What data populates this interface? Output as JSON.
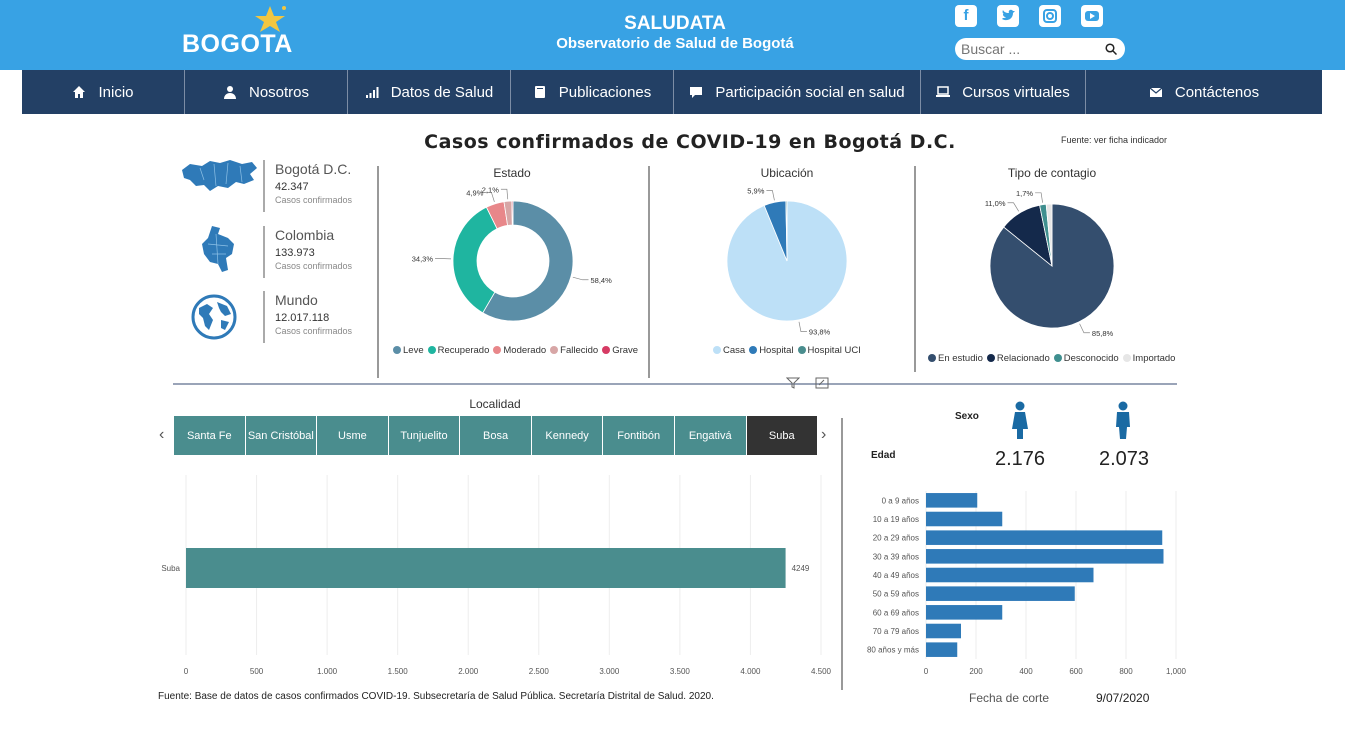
{
  "header": {
    "logo_text": "BOGOTA",
    "app_title": "SALUDATA",
    "app_subtitle": "Observatorio de Salud de Bogotá",
    "search_placeholder": "Buscar ...",
    "social": [
      "facebook-icon",
      "twitter-icon",
      "instagram-icon",
      "youtube-icon"
    ],
    "colors": {
      "topbar": "#38a2e4",
      "nav": "#234065"
    }
  },
  "nav": [
    {
      "label": "Inicio",
      "icon": "home-icon"
    },
    {
      "label": "Nosotros",
      "icon": "user-icon"
    },
    {
      "label": "Datos de Salud",
      "icon": "signal-icon"
    },
    {
      "label": "Publicaciones",
      "icon": "book-icon"
    },
    {
      "label": "Participación social en salud",
      "icon": "comment-icon"
    },
    {
      "label": "Cursos virtuales",
      "icon": "laptop-icon"
    },
    {
      "label": "Contáctenos",
      "icon": "envelope-icon"
    }
  ],
  "report": {
    "title": "Casos confirmados de COVID-19 en Bogotá D.C.",
    "source_link": "Fuente: ver ficha indicador",
    "stats": [
      {
        "name": "Bogotá D.C.",
        "value": "42.347",
        "sub": "Casos confirmados",
        "icon": "bogota-map-icon"
      },
      {
        "name": "Colombia",
        "value": "133.973",
        "sub": "Casos confirmados",
        "icon": "colombia-map-icon"
      },
      {
        "name": "Mundo",
        "value": "12.017.118",
        "sub": "Casos confirmados",
        "icon": "globe-icon"
      }
    ],
    "locality_title": "Localidad",
    "tabs": [
      "Santa Fe",
      "San Cristóbal",
      "Usme",
      "Tunjuelito",
      "Bosa",
      "Kennedy",
      "Fontibón",
      "Engativá",
      "Suba"
    ],
    "active_tab": "Suba",
    "footnote": "Fuente: Base de datos de casos confirmados COVID-19. Subsecretaría de Salud Pública. Secretaría Distrital de Salud. 2020.",
    "sexo_label": "Sexo",
    "edad_label": "Edad",
    "female_count": "2.176",
    "male_count": "2.073",
    "fecha_label": "Fecha de corte",
    "fecha_value": "9/07/2020"
  },
  "chart_data": [
    {
      "type": "pie",
      "title": "Estado",
      "donut": true,
      "slices": [
        {
          "label": "Leve",
          "value": 58.4,
          "text": "58,4%",
          "color": "#5b8ea7"
        },
        {
          "label": "Recuperado",
          "value": 34.3,
          "text": "34,3%",
          "color": "#1fb5a0"
        },
        {
          "label": "Moderado",
          "value": 4.9,
          "text": "4,9%",
          "color": "#e8878a"
        },
        {
          "label": "Fallecido",
          "value": 2.1,
          "text": "2,1%",
          "color": "#d7a6a6"
        },
        {
          "label": "Grave",
          "value": 0.3,
          "text": "",
          "color": "#d63b64"
        }
      ]
    },
    {
      "type": "pie",
      "title": "Ubicación",
      "slices": [
        {
          "label": "Casa",
          "value": 93.8,
          "text": "93,8%",
          "color": "#bde0f7"
        },
        {
          "label": "Hospital",
          "value": 5.9,
          "text": "5,9%",
          "color": "#2f7ab8"
        },
        {
          "label": "Hospital UCI",
          "value": 0.3,
          "text": "",
          "color": "#4a8d8e"
        }
      ]
    },
    {
      "type": "pie",
      "title": "Tipo de contagio",
      "slices": [
        {
          "label": "En estudio",
          "value": 85.8,
          "text": "85,8%",
          "color": "#344e6e"
        },
        {
          "label": "Relacionado",
          "value": 11.0,
          "text": "11,0%",
          "color": "#14294b"
        },
        {
          "label": "Desconocido",
          "value": 1.7,
          "text": "1,7%",
          "color": "#3f8f8f"
        },
        {
          "label": "Importado",
          "value": 1.5,
          "text": "",
          "color": "#e6e6e6"
        }
      ]
    },
    {
      "type": "bar",
      "orientation": "horizontal",
      "categories": [
        "Suba"
      ],
      "values": [
        4249
      ],
      "value_labels": [
        "4249"
      ],
      "xlim": [
        0,
        4500
      ],
      "xticks": [
        "0",
        "500",
        "1.000",
        "1.500",
        "2.000",
        "2.500",
        "3.000",
        "3.500",
        "4.000",
        "4.500"
      ],
      "color": "#4a8d8e"
    },
    {
      "type": "bar",
      "orientation": "horizontal",
      "categories": [
        "0 a 9 años",
        "10 a 19 años",
        "20 a 29 años",
        "30 a 39 años",
        "40 a 49 años",
        "50 a 59 años",
        "60 a 69 años",
        "70 a 79 años",
        "80 años y más"
      ],
      "values": [
        205,
        305,
        945,
        950,
        670,
        595,
        305,
        140,
        125
      ],
      "xlim": [
        0,
        1000
      ],
      "xticks": [
        "0",
        "200",
        "400",
        "600",
        "800",
        "1,000"
      ],
      "color": "#2f7ab8"
    }
  ]
}
